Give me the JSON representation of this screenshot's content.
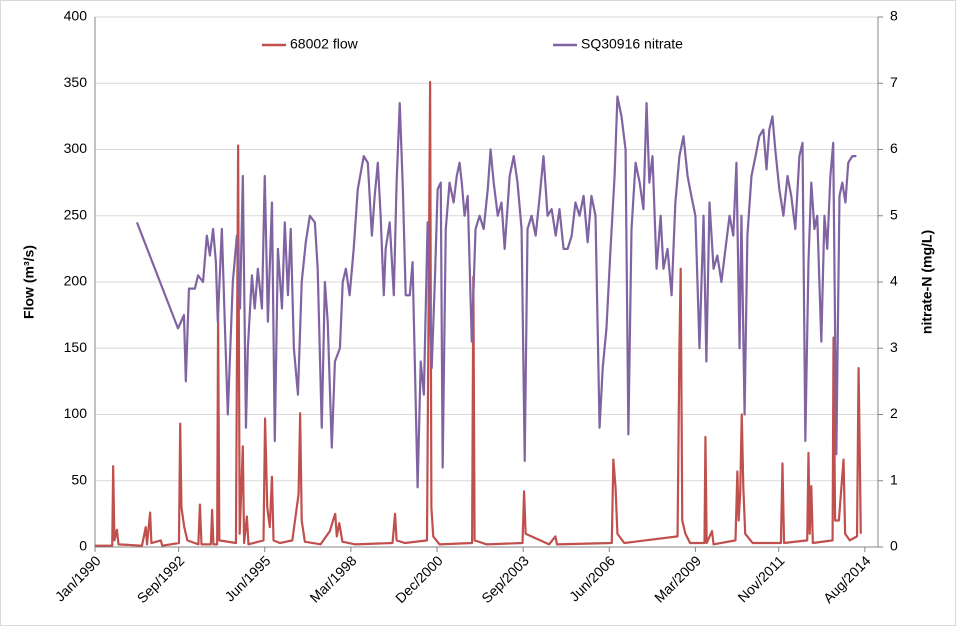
{
  "chart_data": {
    "type": "line",
    "y_label": "Flow (m³/s)",
    "y2_label": "nitrate-N (mg/L)",
    "xlim": [
      1990.0,
      2015.0
    ],
    "xticks": [
      {
        "value": 1990.0,
        "label": "Jan/1990"
      },
      {
        "value": 1992.67,
        "label": "Sep/1992"
      },
      {
        "value": 1995.42,
        "label": "Jun/1995"
      },
      {
        "value": 1998.17,
        "label": "Mar/1998"
      },
      {
        "value": 2000.92,
        "label": "Dec/2000"
      },
      {
        "value": 2003.67,
        "label": "Sep/2003"
      },
      {
        "value": 2006.42,
        "label": "Jun/2006"
      },
      {
        "value": 2009.17,
        "label": "Mar/2009"
      },
      {
        "value": 2011.83,
        "label": "Nov/2011"
      },
      {
        "value": 2014.58,
        "label": "Aug/2014"
      }
    ],
    "ylim": [
      0,
      400
    ],
    "yticks": [
      0,
      50,
      100,
      150,
      200,
      250,
      300,
      350,
      400
    ],
    "y2lim": [
      0,
      8
    ],
    "y2ticks": [
      0,
      1,
      2,
      3,
      4,
      5,
      6,
      7,
      8
    ],
    "grid": true,
    "legend": "top",
    "series": [
      {
        "name": "68002 flow",
        "color": "#c0504d",
        "x": [
          1990.0,
          1990.55,
          1990.58,
          1990.62,
          1990.7,
          1990.75,
          1991.5,
          1991.62,
          1991.66,
          1991.76,
          1991.8,
          1992.1,
          1992.15,
          1992.68,
          1992.72,
          1992.76,
          1992.85,
          1992.95,
          1993.3,
          1993.35,
          1993.4,
          1993.7,
          1993.74,
          1993.78,
          1993.9,
          1993.93,
          1993.97,
          1994.5,
          1994.57,
          1994.62,
          1994.72,
          1994.76,
          1994.85,
          1994.9,
          1995.38,
          1995.43,
          1995.5,
          1995.58,
          1995.65,
          1995.7,
          1995.9,
          1996.3,
          1996.5,
          1996.55,
          1996.6,
          1996.7,
          1997.2,
          1997.5,
          1997.6,
          1997.67,
          1997.72,
          1997.8,
          1997.9,
          1998.3,
          1999.5,
          1999.58,
          1999.63,
          1999.9,
          2000.6,
          2000.7,
          2000.74,
          2000.8,
          2001.0,
          2002.04,
          2002.08,
          2002.12,
          2002.5,
          2003.65,
          2003.7,
          2003.75,
          2004.5,
          2004.7,
          2004.75,
          2006.5,
          2006.55,
          2006.62,
          2006.68,
          2006.9,
          2008.6,
          2008.66,
          2008.7,
          2008.75,
          2008.85,
          2009.0,
          2009.46,
          2009.49,
          2009.53,
          2009.7,
          2009.75,
          2010.45,
          2010.51,
          2010.55,
          2010.6,
          2010.65,
          2010.7,
          2010.76,
          2011.0,
          2011.9,
          2011.95,
          2012.0,
          2012.74,
          2012.78,
          2012.82,
          2012.87,
          2012.92,
          2013.55,
          2013.58,
          2013.63,
          2013.75,
          2013.9,
          2013.95,
          2014.1,
          2014.33,
          2014.38,
          2014.42,
          2014.45
        ],
        "values": [
          1,
          1,
          61,
          5,
          13,
          2,
          1,
          15,
          2,
          26,
          3,
          5,
          1,
          3,
          93,
          30,
          15,
          5,
          2,
          32,
          2,
          2,
          28,
          2,
          2,
          175,
          5,
          3,
          303,
          10,
          76,
          3,
          23,
          2,
          5,
          97,
          30,
          15,
          53,
          5,
          3,
          5,
          40,
          101,
          20,
          4,
          2,
          12,
          20,
          25,
          8,
          18,
          4,
          2,
          3,
          25,
          5,
          3,
          5,
          351,
          30,
          8,
          2,
          3,
          204,
          5,
          2,
          3,
          42,
          10,
          2,
          8,
          2,
          3,
          66,
          45,
          10,
          3,
          8,
          150,
          210,
          20,
          10,
          3,
          3,
          83,
          3,
          12,
          2,
          5,
          57,
          20,
          40,
          100,
          45,
          10,
          3,
          3,
          63,
          3,
          5,
          71,
          10,
          46,
          3,
          5,
          158,
          20,
          20,
          66,
          10,
          5,
          8,
          135,
          68,
          10
        ]
      },
      {
        "name": "SQ30916 nitrate",
        "color": "#8064a2",
        "axis": "y2",
        "x": [
          1991.34,
          1992.65,
          1992.84,
          1992.9,
          1993.0,
          1993.19,
          1993.29,
          1993.45,
          1993.57,
          1993.67,
          1993.77,
          1993.86,
          1993.92,
          1994.05,
          1994.15,
          1994.24,
          1994.4,
          1994.53,
          1994.63,
          1994.72,
          1994.82,
          1994.88,
          1995.01,
          1995.1,
          1995.2,
          1995.33,
          1995.42,
          1995.52,
          1995.65,
          1995.74,
          1995.84,
          1995.97,
          1996.06,
          1996.16,
          1996.25,
          1996.35,
          1996.48,
          1996.6,
          1996.73,
          1996.86,
          1997.02,
          1997.11,
          1997.24,
          1997.34,
          1997.43,
          1997.56,
          1997.66,
          1997.82,
          1997.91,
          1998.01,
          1998.13,
          1998.26,
          1998.39,
          1998.58,
          1998.71,
          1998.84,
          1998.93,
          1999.03,
          1999.12,
          1999.22,
          1999.28,
          1999.41,
          1999.54,
          1999.63,
          1999.73,
          1999.83,
          1999.92,
          2000.05,
          2000.14,
          2000.3,
          2000.4,
          2000.5,
          2000.62,
          2000.75,
          2000.85,
          2000.94,
          2001.04,
          2001.1,
          2001.2,
          2001.32,
          2001.45,
          2001.55,
          2001.64,
          2001.71,
          2001.8,
          2001.9,
          2002.03,
          2002.15,
          2002.28,
          2002.41,
          2002.54,
          2002.63,
          2002.73,
          2002.86,
          2002.98,
          2003.08,
          2003.24,
          2003.37,
          2003.49,
          2003.62,
          2003.72,
          2003.81,
          2003.94,
          2004.07,
          2004.2,
          2004.32,
          2004.45,
          2004.58,
          2004.71,
          2004.83,
          2004.96,
          2005.09,
          2005.22,
          2005.34,
          2005.47,
          2005.6,
          2005.73,
          2005.85,
          2005.98,
          2006.11,
          2006.21,
          2006.33,
          2006.46,
          2006.59,
          2006.68,
          2006.81,
          2006.94,
          2007.03,
          2007.13,
          2007.26,
          2007.39,
          2007.51,
          2007.61,
          2007.7,
          2007.8,
          2007.93,
          2008.06,
          2008.15,
          2008.28,
          2008.41,
          2008.53,
          2008.66,
          2008.79,
          2008.92,
          2009.04,
          2009.17,
          2009.3,
          2009.43,
          2009.52,
          2009.62,
          2009.75,
          2009.87,
          2010.0,
          2010.13,
          2010.26,
          2010.38,
          2010.48,
          2010.58,
          2010.64,
          2010.74,
          2010.83,
          2010.96,
          2011.09,
          2011.21,
          2011.34,
          2011.44,
          2011.53,
          2011.63,
          2011.72,
          2011.85,
          2011.98,
          2012.11,
          2012.23,
          2012.36,
          2012.49,
          2012.59,
          2012.68,
          2012.78,
          2012.87,
          2012.97,
          2013.06,
          2013.19,
          2013.29,
          2013.38,
          2013.48,
          2013.57,
          2013.67,
          2013.77,
          2013.86,
          2013.96,
          2014.05,
          2014.18,
          2014.31
        ],
        "values": [
          4.9,
          3.3,
          3.5,
          2.5,
          3.9,
          3.9,
          4.1,
          4.0,
          4.7,
          4.4,
          4.8,
          4.3,
          3.4,
          4.8,
          3.3,
          2.0,
          4.0,
          4.7,
          3.6,
          5.6,
          1.8,
          3.0,
          4.1,
          3.6,
          4.2,
          3.6,
          5.6,
          3.4,
          5.2,
          1.6,
          4.5,
          3.6,
          4.9,
          3.8,
          4.8,
          3.0,
          2.3,
          4.0,
          4.6,
          5.0,
          4.9,
          4.2,
          1.8,
          4.0,
          3.4,
          1.5,
          2.8,
          3.0,
          4.0,
          4.2,
          3.8,
          4.5,
          5.4,
          5.9,
          5.8,
          4.7,
          5.3,
          5.8,
          5.0,
          3.8,
          4.5,
          4.9,
          3.8,
          5.5,
          6.7,
          5.4,
          3.8,
          3.8,
          4.3,
          0.9,
          2.8,
          2.3,
          4.9,
          2.7,
          4.0,
          5.4,
          5.5,
          1.2,
          4.8,
          5.5,
          5.2,
          5.6,
          5.8,
          5.5,
          5.0,
          5.3,
          3.1,
          4.8,
          5.0,
          4.8,
          5.4,
          6.0,
          5.5,
          5.0,
          5.2,
          4.5,
          5.6,
          5.9,
          5.5,
          4.8,
          1.3,
          4.8,
          5.0,
          4.7,
          5.3,
          5.9,
          5.0,
          5.1,
          4.7,
          5.1,
          4.5,
          4.5,
          4.7,
          5.2,
          5.0,
          5.3,
          4.6,
          5.3,
          5.0,
          1.8,
          2.7,
          3.3,
          4.5,
          5.6,
          6.8,
          6.5,
          6.0,
          1.7,
          4.8,
          5.8,
          5.5,
          5.1,
          6.7,
          5.5,
          5.9,
          4.2,
          5.0,
          4.2,
          4.5,
          3.8,
          5.2,
          5.9,
          6.2,
          5.6,
          5.3,
          5.0,
          3.0,
          5.0,
          2.8,
          5.2,
          4.2,
          4.4,
          4.0,
          4.5,
          5.0,
          4.7,
          5.8,
          3.0,
          5.0,
          2.0,
          4.7,
          5.6,
          5.9,
          6.2,
          6.3,
          5.7,
          6.3,
          6.5,
          6.0,
          5.4,
          5.0,
          5.6,
          5.3,
          4.8,
          5.9,
          6.1,
          1.6,
          4.3,
          5.5,
          4.8,
          5.0,
          3.1,
          5.0,
          4.5,
          5.6,
          6.1,
          1.4,
          5.3,
          5.5,
          5.2,
          5.8,
          5.9,
          5.9
        ]
      }
    ]
  }
}
